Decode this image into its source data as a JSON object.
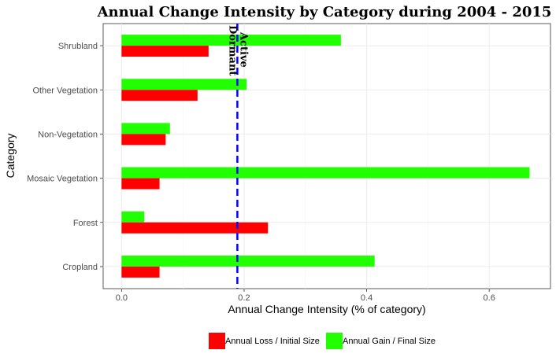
{
  "chart_data": {
    "type": "bar",
    "orientation": "horizontal",
    "title": "Annual Change Intensity by Category during  2004 - 2015",
    "xlabel": "Annual Change Intensity (% of category)",
    "ylabel": "Category",
    "xlim": [
      -0.03,
      0.7
    ],
    "xticks": [
      0.0,
      0.2,
      0.4,
      0.6
    ],
    "xtick_labels": [
      "0.0",
      "0.2",
      "0.4",
      "0.6"
    ],
    "categories": [
      "Cropland",
      "Forest",
      "Mosaic Vegetation",
      "Non-Vegetation",
      "Other Vegetation",
      "Shrubland"
    ],
    "series": [
      {
        "name": "Annual Loss / Initial Size",
        "color": "#ff0000",
        "values": [
          0.062,
          0.239,
          0.062,
          0.072,
          0.124,
          0.142
        ]
      },
      {
        "name": "Annual Gain / Final Size",
        "color": "#22ff00",
        "values": [
          0.413,
          0.037,
          0.666,
          0.079,
          0.204,
          0.358
        ]
      }
    ],
    "reference_line": {
      "value": 0.189,
      "color": "#0000ff",
      "style": "dashed"
    },
    "annotations": [
      "Dormant",
      "Active"
    ],
    "grid": true,
    "legend_position": "bottom"
  }
}
